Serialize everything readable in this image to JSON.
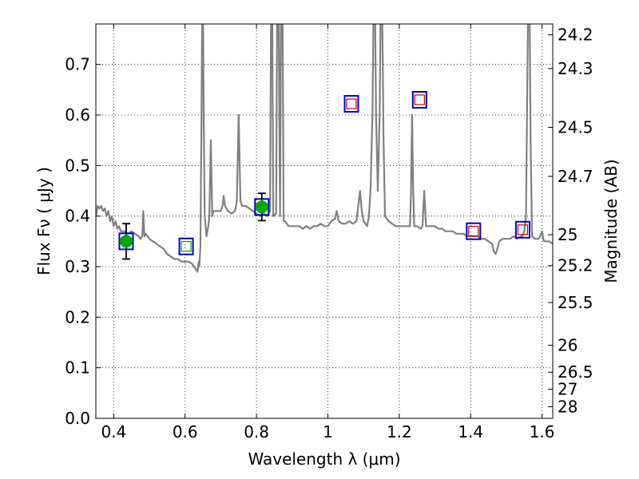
{
  "chart_data": {
    "type": "scatter",
    "title": "",
    "xlabel": "Wavelength  λ (μm)",
    "ylabel": "Flux  Fν  ( μJy )",
    "ylabel_right": "Magnitude (AB)",
    "xlim": [
      0.35,
      1.63
    ],
    "ylim": [
      0.0,
      0.78
    ],
    "grid": true,
    "colors": {
      "spectrum": "#808080",
      "detection": "#00aa00",
      "model_box": "#0000cc",
      "upper_box": "#cc0000",
      "ghost_box": "#00aa00",
      "errorbar": "#000000"
    },
    "x_ticks": [
      {
        "value": 0.4,
        "label": "0.4"
      },
      {
        "value": 0.6,
        "label": "0.6"
      },
      {
        "value": 0.8,
        "label": "0.8"
      },
      {
        "value": 1.0,
        "label": "1"
      },
      {
        "value": 1.2,
        "label": "1.2"
      },
      {
        "value": 1.4,
        "label": "1.4"
      },
      {
        "value": 1.6,
        "label": "1.6"
      }
    ],
    "y_ticks": [
      {
        "value": 0.0,
        "label": "0.0"
      },
      {
        "value": 0.1,
        "label": "0.1"
      },
      {
        "value": 0.2,
        "label": "0.2"
      },
      {
        "value": 0.3,
        "label": "0.3"
      },
      {
        "value": 0.4,
        "label": "0.4"
      },
      {
        "value": 0.5,
        "label": "0.5"
      },
      {
        "value": 0.6,
        "label": "0.6"
      },
      {
        "value": 0.7,
        "label": "0.7"
      }
    ],
    "mag_ticks": [
      {
        "value": 24.2,
        "label": "24.2"
      },
      {
        "value": 24.3,
        "label": "24.3"
      },
      {
        "value": 24.5,
        "label": "24.5"
      },
      {
        "value": 24.7,
        "label": "24.7"
      },
      {
        "value": 25.0,
        "label": "25"
      },
      {
        "value": 25.2,
        "label": "25.2"
      },
      {
        "value": 25.5,
        "label": "25.5"
      },
      {
        "value": 26.0,
        "label": "26"
      },
      {
        "value": 26.5,
        "label": "26.5"
      },
      {
        "value": 27.0,
        "label": "27"
      },
      {
        "value": 28.0,
        "label": "28"
      }
    ],
    "spectrum": [
      [
        0.35,
        0.4
      ],
      [
        0.355,
        0.42
      ],
      [
        0.36,
        0.415
      ],
      [
        0.365,
        0.42
      ],
      [
        0.37,
        0.41
      ],
      [
        0.375,
        0.415
      ],
      [
        0.38,
        0.4
      ],
      [
        0.385,
        0.41
      ],
      [
        0.39,
        0.39
      ],
      [
        0.395,
        0.4
      ],
      [
        0.4,
        0.38
      ],
      [
        0.405,
        0.39
      ],
      [
        0.41,
        0.375
      ],
      [
        0.415,
        0.38
      ],
      [
        0.42,
        0.37
      ],
      [
        0.43,
        0.37
      ],
      [
        0.44,
        0.365
      ],
      [
        0.45,
        0.37
      ],
      [
        0.46,
        0.365
      ],
      [
        0.47,
        0.36
      ],
      [
        0.475,
        0.355
      ],
      [
        0.48,
        0.36
      ],
      [
        0.483,
        0.41
      ],
      [
        0.486,
        0.36
      ],
      [
        0.49,
        0.365
      ],
      [
        0.5,
        0.355
      ],
      [
        0.51,
        0.35
      ],
      [
        0.52,
        0.345
      ],
      [
        0.53,
        0.34
      ],
      [
        0.54,
        0.335
      ],
      [
        0.55,
        0.325
      ],
      [
        0.56,
        0.32
      ],
      [
        0.57,
        0.315
      ],
      [
        0.58,
        0.315
      ],
      [
        0.59,
        0.31
      ],
      [
        0.6,
        0.31
      ],
      [
        0.61,
        0.31
      ],
      [
        0.62,
        0.305
      ],
      [
        0.625,
        0.3
      ],
      [
        0.63,
        0.295
      ],
      [
        0.635,
        0.29
      ],
      [
        0.638,
        0.31
      ],
      [
        0.64,
        0.3
      ],
      [
        0.643,
        0.34
      ],
      [
        0.646,
        0.6
      ],
      [
        0.648,
        0.82
      ],
      [
        0.65,
        0.82
      ],
      [
        0.652,
        0.6
      ],
      [
        0.655,
        0.4
      ],
      [
        0.66,
        0.36
      ],
      [
        0.665,
        0.38
      ],
      [
        0.668,
        0.4
      ],
      [
        0.672,
        0.55
      ],
      [
        0.676,
        0.4
      ],
      [
        0.68,
        0.41
      ],
      [
        0.69,
        0.41
      ],
      [
        0.7,
        0.41
      ],
      [
        0.705,
        0.42
      ],
      [
        0.708,
        0.44
      ],
      [
        0.712,
        0.42
      ],
      [
        0.72,
        0.41
      ],
      [
        0.73,
        0.405
      ],
      [
        0.74,
        0.41
      ],
      [
        0.745,
        0.43
      ],
      [
        0.75,
        0.6
      ],
      [
        0.755,
        0.43
      ],
      [
        0.76,
        0.42
      ],
      [
        0.77,
        0.42
      ],
      [
        0.78,
        0.415
      ],
      [
        0.79,
        0.41
      ],
      [
        0.8,
        0.405
      ],
      [
        0.81,
        0.4
      ],
      [
        0.82,
        0.405
      ],
      [
        0.83,
        0.4
      ],
      [
        0.838,
        0.41
      ],
      [
        0.841,
        0.82
      ],
      [
        0.844,
        0.82
      ],
      [
        0.847,
        0.4
      ],
      [
        0.855,
        0.405
      ],
      [
        0.858,
        0.82
      ],
      [
        0.862,
        0.82
      ],
      [
        0.866,
        0.4
      ],
      [
        0.869,
        0.82
      ],
      [
        0.873,
        0.82
      ],
      [
        0.876,
        0.39
      ],
      [
        0.88,
        0.39
      ],
      [
        0.89,
        0.38
      ],
      [
        0.9,
        0.38
      ],
      [
        0.91,
        0.38
      ],
      [
        0.92,
        0.38
      ],
      [
        0.93,
        0.375
      ],
      [
        0.94,
        0.38
      ],
      [
        0.95,
        0.375
      ],
      [
        0.96,
        0.38
      ],
      [
        0.97,
        0.38
      ],
      [
        0.98,
        0.385
      ],
      [
        0.99,
        0.38
      ],
      [
        1.0,
        0.38
      ],
      [
        1.01,
        0.39
      ],
      [
        1.02,
        0.395
      ],
      [
        1.025,
        0.41
      ],
      [
        1.03,
        0.39
      ],
      [
        1.04,
        0.385
      ],
      [
        1.05,
        0.385
      ],
      [
        1.06,
        0.39
      ],
      [
        1.07,
        0.385
      ],
      [
        1.08,
        0.39
      ],
      [
        1.085,
        0.42
      ],
      [
        1.09,
        0.45
      ],
      [
        1.095,
        0.41
      ],
      [
        1.1,
        0.39
      ],
      [
        1.11,
        0.38
      ],
      [
        1.115,
        0.4
      ],
      [
        1.12,
        0.46
      ],
      [
        1.125,
        0.6
      ],
      [
        1.128,
        0.82
      ],
      [
        1.132,
        0.82
      ],
      [
        1.135,
        0.6
      ],
      [
        1.14,
        0.45
      ],
      [
        1.145,
        0.6
      ],
      [
        1.148,
        0.82
      ],
      [
        1.152,
        0.82
      ],
      [
        1.156,
        0.55
      ],
      [
        1.16,
        0.4
      ],
      [
        1.17,
        0.39
      ],
      [
        1.18,
        0.385
      ],
      [
        1.19,
        0.38
      ],
      [
        1.2,
        0.38
      ],
      [
        1.21,
        0.38
      ],
      [
        1.22,
        0.38
      ],
      [
        1.23,
        0.38
      ],
      [
        1.233,
        0.45
      ],
      [
        1.236,
        0.6
      ],
      [
        1.239,
        0.45
      ],
      [
        1.242,
        0.38
      ],
      [
        1.25,
        0.38
      ],
      [
        1.26,
        0.375
      ],
      [
        1.265,
        0.38
      ],
      [
        1.27,
        0.45
      ],
      [
        1.275,
        0.38
      ],
      [
        1.28,
        0.38
      ],
      [
        1.29,
        0.38
      ],
      [
        1.3,
        0.38
      ],
      [
        1.31,
        0.375
      ],
      [
        1.32,
        0.375
      ],
      [
        1.33,
        0.37
      ],
      [
        1.34,
        0.37
      ],
      [
        1.35,
        0.37
      ],
      [
        1.36,
        0.365
      ],
      [
        1.37,
        0.365
      ],
      [
        1.38,
        0.365
      ],
      [
        1.39,
        0.36
      ],
      [
        1.4,
        0.36
      ],
      [
        1.41,
        0.36
      ],
      [
        1.42,
        0.36
      ],
      [
        1.43,
        0.355
      ],
      [
        1.44,
        0.355
      ],
      [
        1.45,
        0.35
      ],
      [
        1.46,
        0.345
      ],
      [
        1.465,
        0.33
      ],
      [
        1.47,
        0.325
      ],
      [
        1.475,
        0.335
      ],
      [
        1.48,
        0.35
      ],
      [
        1.49,
        0.355
      ],
      [
        1.5,
        0.355
      ],
      [
        1.51,
        0.355
      ],
      [
        1.52,
        0.36
      ],
      [
        1.53,
        0.355
      ],
      [
        1.54,
        0.36
      ],
      [
        1.545,
        0.36
      ],
      [
        1.55,
        0.37
      ],
      [
        1.555,
        0.4
      ],
      [
        1.558,
        0.6
      ],
      [
        1.561,
        0.82
      ],
      [
        1.565,
        0.82
      ],
      [
        1.568,
        0.55
      ],
      [
        1.572,
        0.36
      ],
      [
        1.58,
        0.355
      ],
      [
        1.59,
        0.355
      ],
      [
        1.595,
        0.36
      ],
      [
        1.6,
        0.37
      ],
      [
        1.605,
        0.35
      ],
      [
        1.61,
        0.35
      ],
      [
        1.62,
        0.35
      ],
      [
        1.63,
        0.345
      ]
    ],
    "detections": [
      {
        "x": 0.435,
        "y": 0.35,
        "yerr": 0.035
      },
      {
        "x": 0.815,
        "y": 0.418,
        "yerr": 0.027
      }
    ],
    "model_points": [
      {
        "x": 0.435,
        "y": 0.35,
        "kind": "detected"
      },
      {
        "x": 0.603,
        "y": 0.34,
        "kind": "faint"
      },
      {
        "x": 0.815,
        "y": 0.418,
        "kind": "detected"
      },
      {
        "x": 1.066,
        "y": 0.622,
        "kind": "upper"
      },
      {
        "x": 1.257,
        "y": 0.63,
        "kind": "upper"
      },
      {
        "x": 1.408,
        "y": 0.37,
        "kind": "upper"
      },
      {
        "x": 1.546,
        "y": 0.373,
        "kind": "upper"
      }
    ]
  }
}
